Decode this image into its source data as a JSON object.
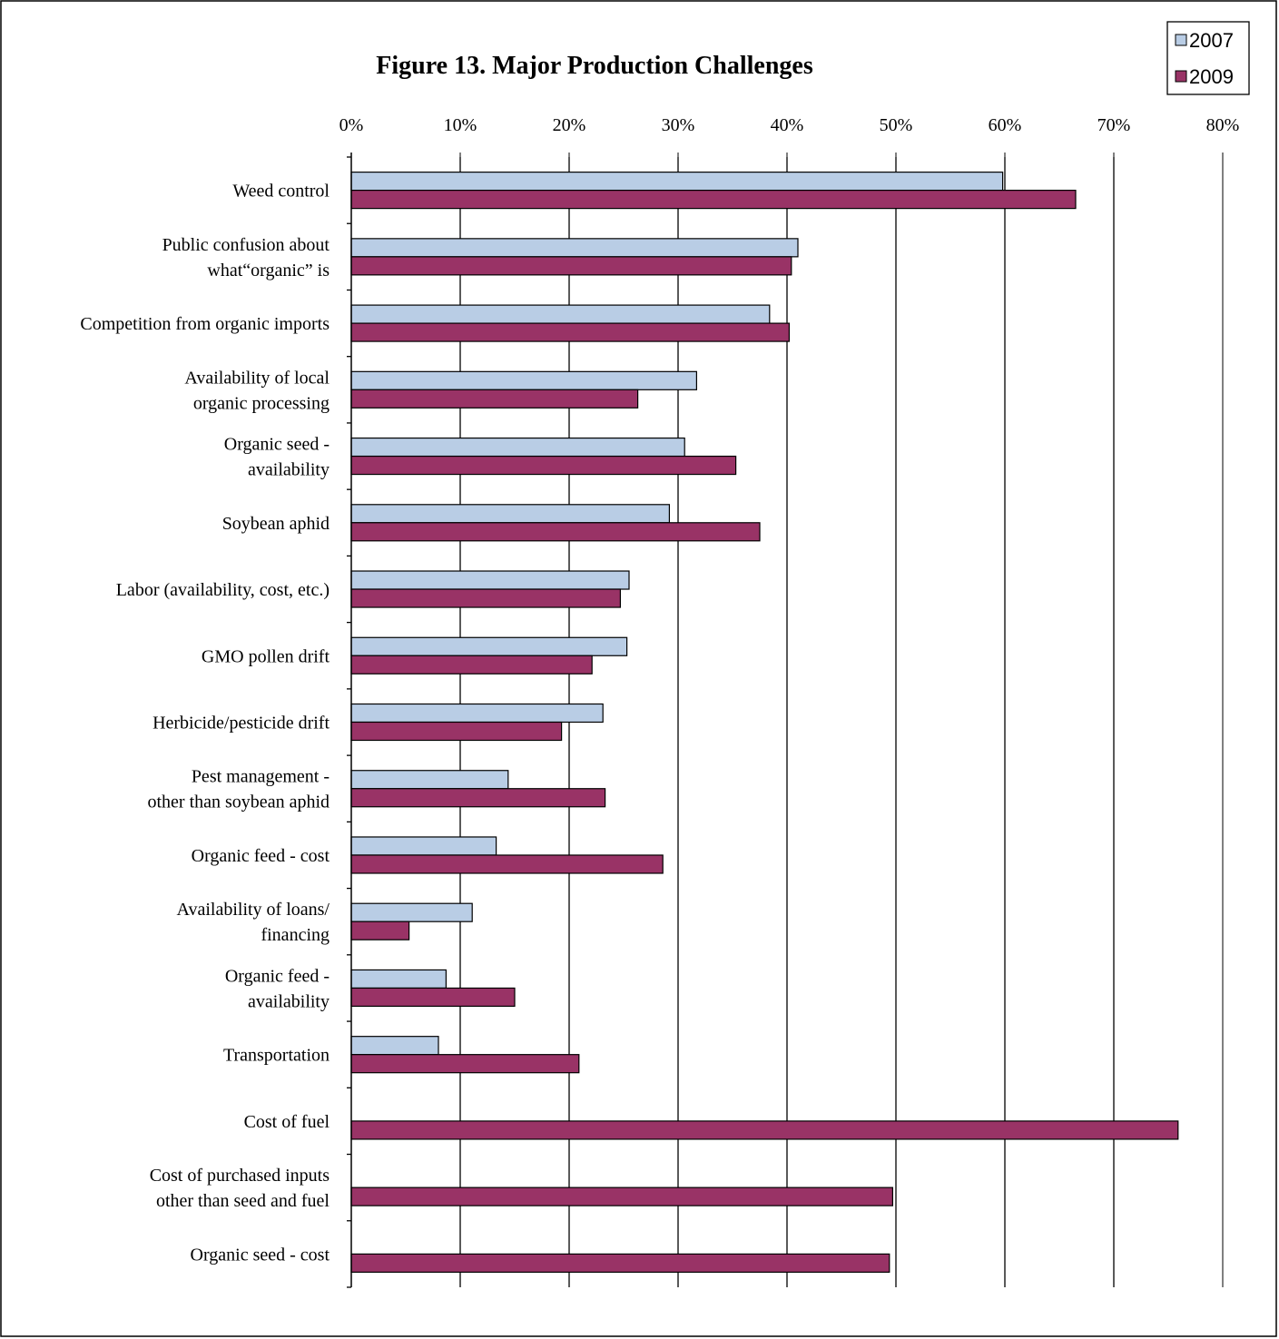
{
  "chart_data": {
    "type": "bar",
    "orientation": "horizontal",
    "title": "Figure 13.  Major Production Challenges",
    "xlabel": "",
    "ylabel": "",
    "xlim": [
      0,
      80
    ],
    "x_ticks": [
      "0%",
      "10%",
      "20%",
      "30%",
      "40%",
      "50%",
      "60%",
      "70%",
      "80%"
    ],
    "grid": "vertical major gridlines",
    "legend_position": "top-right",
    "categories": [
      [
        "Weed control"
      ],
      [
        "Public confusion about",
        "what“organic” is"
      ],
      [
        "Competition from organic imports"
      ],
      [
        "Availability of local",
        "organic processing"
      ],
      [
        "Organic seed -",
        "availability"
      ],
      [
        "Soybean aphid"
      ],
      [
        "Labor (availability,  cost, etc.)"
      ],
      [
        "GMO pollen drift"
      ],
      [
        "Herbicide/pesticide  drift"
      ],
      [
        "Pest management  -",
        "other than soybean aphid"
      ],
      [
        "Organic feed - cost"
      ],
      [
        "Availability of loans/",
        "financing"
      ],
      [
        "Organic feed -",
        "availability"
      ],
      [
        "Transportation"
      ],
      [
        "Cost of fuel"
      ],
      [
        "Cost of purchased inputs",
        "other than seed and fuel"
      ],
      [
        "Organic seed - cost"
      ]
    ],
    "series": [
      {
        "name": "2007",
        "color": "#b9cde5",
        "values": [
          59.8,
          41.0,
          38.4,
          31.7,
          30.6,
          29.2,
          25.5,
          25.3,
          23.1,
          14.4,
          13.3,
          11.1,
          8.7,
          8.0,
          null,
          null,
          null
        ]
      },
      {
        "name": "2009",
        "color": "#993366",
        "values": [
          66.5,
          40.4,
          40.2,
          26.3,
          35.3,
          37.5,
          24.7,
          22.1,
          19.3,
          23.3,
          28.6,
          5.3,
          15.0,
          20.9,
          75.9,
          49.7,
          49.4
        ]
      }
    ]
  }
}
